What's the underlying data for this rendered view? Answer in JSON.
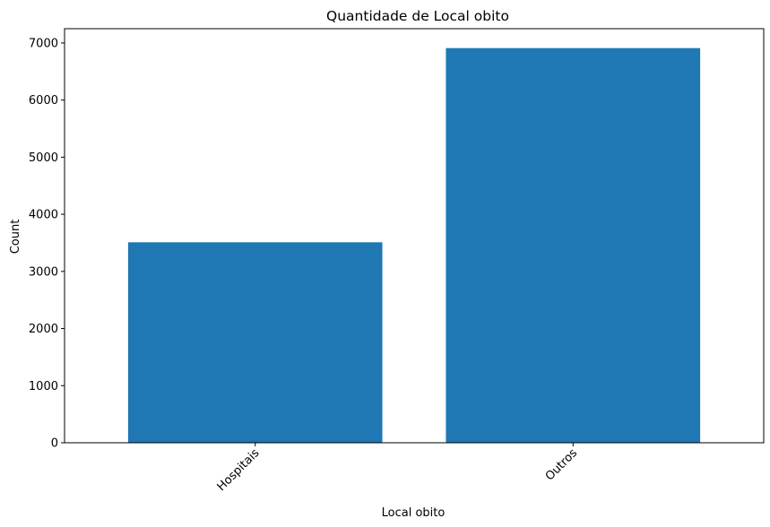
{
  "chart_data": {
    "type": "bar",
    "title": "Quantidade de Local obito",
    "xlabel": "Local obito",
    "ylabel": "Count",
    "categories": [
      "Hospitais",
      "Outros"
    ],
    "values": [
      3510,
      6910
    ],
    "ylim": [
      0,
      7250
    ],
    "yticks": [
      0,
      1000,
      2000,
      3000,
      4000,
      5000,
      6000,
      7000
    ],
    "xtick_rotation_deg": 45,
    "bar_color": "#1f77b4",
    "grid": false,
    "legend": "none"
  }
}
